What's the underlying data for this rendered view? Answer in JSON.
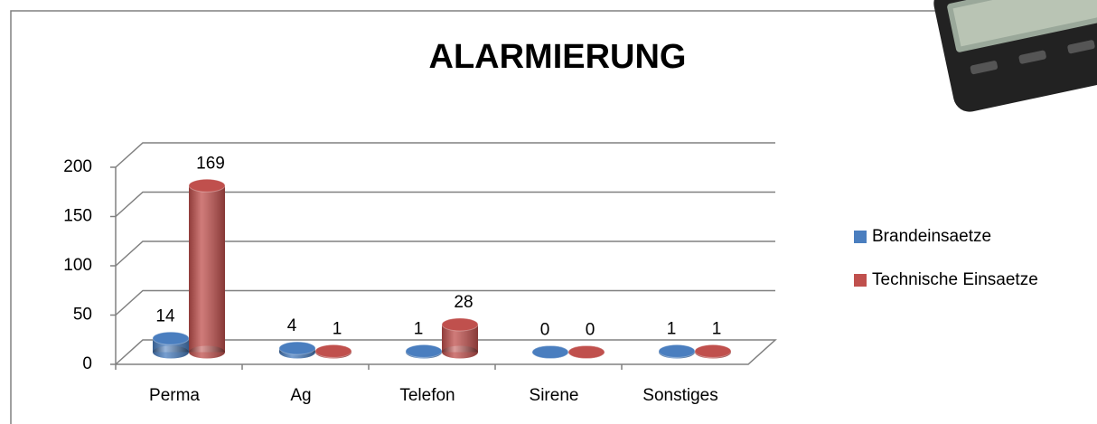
{
  "chart_data": {
    "type": "bar3d",
    "title": "ALARMIERUNG",
    "categories": [
      "Perma",
      "Ag",
      "Telefon",
      "Sirene",
      "Sonstiges"
    ],
    "series": [
      {
        "name": "Brandeinsaetze",
        "color": "#4a7ebf",
        "values": [
          14,
          4,
          1,
          0,
          1
        ]
      },
      {
        "name": "Technische Einsaetze",
        "color": "#c0504d",
        "values": [
          169,
          1,
          28,
          0,
          1
        ]
      }
    ],
    "ylim": [
      0,
      200
    ],
    "yticks": [
      0,
      50,
      100,
      150,
      200
    ],
    "grid": true,
    "legend": "right",
    "data_labels": true
  }
}
